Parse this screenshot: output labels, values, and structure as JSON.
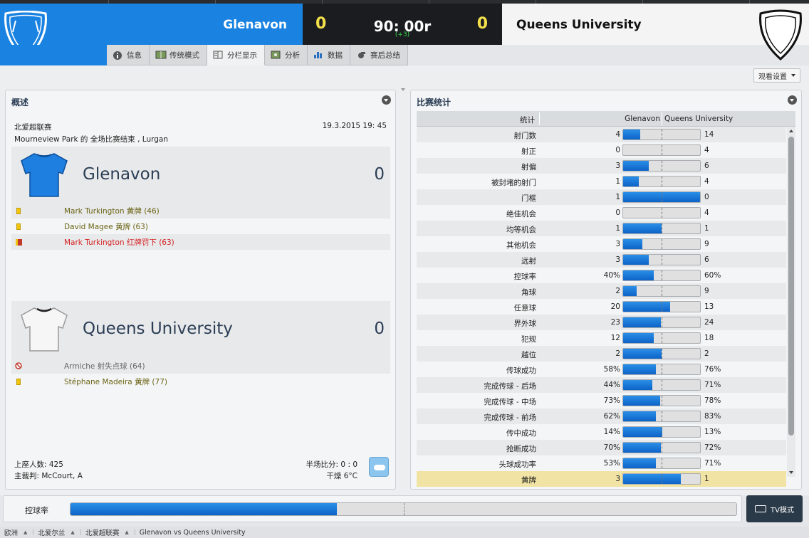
{
  "header": {
    "home_team": "Glenavon",
    "away_team": "Queens University",
    "home_score": "0",
    "away_score": "0",
    "clock": "90: 00r",
    "added_time": "(+3)",
    "home_color": "#1a82e0",
    "away_color": "#f4f4f4"
  },
  "tabs": [
    {
      "label": "信息",
      "icon": "info-icon"
    },
    {
      "label": "传统模式",
      "icon": "pitch-icon"
    },
    {
      "label": "分栏显示",
      "icon": "split-view-icon",
      "active": true
    },
    {
      "label": "分析",
      "icon": "analysis-icon"
    },
    {
      "label": "数据",
      "icon": "chart-icon"
    },
    {
      "label": "赛后总结",
      "icon": "whistle-icon"
    }
  ],
  "view_settings": "观看设置",
  "overview": {
    "title": "概述",
    "competition": "北爱超联赛",
    "date": "19.3.2015 19: 45",
    "venue": "Mourneview Park 的 全场比赛结束 , Lurgan",
    "home": {
      "name": "Glenavon",
      "score": "0",
      "events": [
        {
          "text": "Mark Turkington 黄牌 (46)",
          "type": "yellow"
        },
        {
          "text": "David Magee 黄牌 (63)",
          "type": "yellow"
        },
        {
          "text": "Mark Turkington 红牌罚下 (63)",
          "type": "second-yellow"
        }
      ]
    },
    "away": {
      "name": "Queens University",
      "score": "0",
      "events": [
        {
          "text": "Armiche 射失点球 (64)",
          "type": "missed-penalty"
        },
        {
          "text": "Stéphane Madeira 黄牌 (77)",
          "type": "yellow"
        }
      ]
    },
    "attendance": "上座人数: 425",
    "referee": "主裁判: McCourt, A",
    "halftime": "半场比分: 0 : 0",
    "weather": "干燥 6°C"
  },
  "stats": {
    "title": "比赛统计",
    "col_stat": "统计",
    "col_home": "Glenavon",
    "col_away": "Queens University",
    "rows": [
      {
        "label": "射门数",
        "home": "4",
        "away": "14",
        "home_share": 0.22
      },
      {
        "label": "射正",
        "home": "0",
        "away": "4",
        "home_share": 0.0
      },
      {
        "label": "射偏",
        "home": "3",
        "away": "6",
        "home_share": 0.33
      },
      {
        "label": "被封堵的射门",
        "home": "1",
        "away": "4",
        "home_share": 0.2
      },
      {
        "label": "门框",
        "home": "1",
        "away": "0",
        "home_share": 1.0
      },
      {
        "label": "绝佳机会",
        "home": "0",
        "away": "4",
        "home_share": 0.0
      },
      {
        "label": "均等机会",
        "home": "1",
        "away": "1",
        "home_share": 0.5
      },
      {
        "label": "其他机会",
        "home": "3",
        "away": "9",
        "home_share": 0.25
      },
      {
        "label": "远射",
        "home": "3",
        "away": "6",
        "home_share": 0.33
      },
      {
        "label": "控球率",
        "home": "40%",
        "away": "60%",
        "home_share": 0.4
      },
      {
        "label": "角球",
        "home": "2",
        "away": "9",
        "home_share": 0.18
      },
      {
        "label": "任意球",
        "home": "20",
        "away": "13",
        "home_share": 0.61
      },
      {
        "label": "界外球",
        "home": "23",
        "away": "24",
        "home_share": 0.49
      },
      {
        "label": "犯规",
        "home": "12",
        "away": "18",
        "home_share": 0.4
      },
      {
        "label": "越位",
        "home": "2",
        "away": "2",
        "home_share": 0.5
      },
      {
        "label": "传球成功",
        "home": "58%",
        "away": "76%",
        "home_share": 0.43
      },
      {
        "label": "完成传球 - 后场",
        "home": "44%",
        "away": "71%",
        "home_share": 0.38
      },
      {
        "label": "完成传球 - 中场",
        "home": "73%",
        "away": "78%",
        "home_share": 0.48
      },
      {
        "label": "完成传球 - 前场",
        "home": "62%",
        "away": "83%",
        "home_share": 0.43
      },
      {
        "label": "传中成功",
        "home": "14%",
        "away": "13%",
        "home_share": 0.51
      },
      {
        "label": "抢断成功",
        "home": "70%",
        "away": "72%",
        "home_share": 0.49
      },
      {
        "label": "头球成功率",
        "home": "53%",
        "away": "71%",
        "home_share": 0.43
      },
      {
        "label": "黄牌",
        "home": "3",
        "away": "1",
        "home_share": 0.75,
        "highlight": true
      }
    ]
  },
  "possession": {
    "label": "控球率",
    "home_share": 0.4
  },
  "tv_mode": "TV模式",
  "breadcrumb": [
    "欧洲",
    "北爱尔兰",
    "北爱超联赛",
    "Glenavon vs Queens University"
  ]
}
